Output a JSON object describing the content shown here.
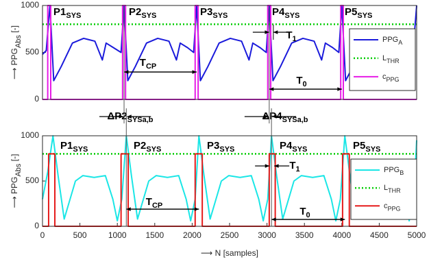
{
  "chart_data": [
    {
      "type": "line",
      "ylabel": {
        "main": "⟶ PPG",
        "sub": "Abs",
        "after": " [-]"
      },
      "xlim": [
        0,
        5000
      ],
      "ylim": [
        0,
        1000
      ],
      "yticks": [
        0,
        500,
        1000
      ],
      "grid": false,
      "series": [
        {
          "name": "PPG",
          "name_sub": "A",
          "color": "#1a1adb",
          "style": "solid",
          "x": [
            0,
            50,
            100,
            150,
            250,
            400,
            550,
            700,
            800,
            850,
            950,
            1050,
            1090,
            1140,
            1240,
            1390,
            1540,
            1690,
            1790,
            1840,
            1940,
            2020,
            2060,
            2110,
            2210,
            2360,
            2510,
            2660,
            2760,
            2810,
            2910,
            2990,
            3030,
            3080,
            3180,
            3330,
            3480,
            3630,
            3730,
            3780,
            3880,
            3960,
            4000,
            4050,
            4150,
            4300,
            4450,
            4600,
            4700,
            4750,
            4850,
            4950,
            5000
          ],
          "values": [
            480,
            520,
            1000,
            200,
            350,
            600,
            650,
            620,
            420,
            600,
            550,
            500,
            1000,
            200,
            350,
            600,
            650,
            620,
            420,
            600,
            550,
            500,
            1000,
            200,
            350,
            600,
            650,
            620,
            420,
            600,
            550,
            500,
            1000,
            200,
            350,
            600,
            650,
            620,
            420,
            600,
            550,
            500,
            1000,
            200,
            350,
            600,
            650,
            620,
            420,
            600,
            550,
            500,
            1000
          ]
        },
        {
          "name": "L",
          "name_sub": "THR",
          "color": "#00cc00",
          "style": "dotted",
          "x": [
            0,
            5000
          ],
          "values": [
            800,
            800
          ]
        },
        {
          "name": "c",
          "name_sub": "PPG",
          "color": "#e61ae6",
          "style": "solid",
          "x": [
            0,
            70,
            70,
            110,
            110,
            1070,
            1070,
            1110,
            1110,
            2040,
            2040,
            2080,
            2080,
            3010,
            3010,
            3050,
            3050,
            3985,
            3985,
            4020,
            4020,
            5000
          ],
          "values": [
            0,
            0,
            1000,
            1000,
            0,
            0,
            1000,
            1000,
            0,
            0,
            1000,
            1000,
            0,
            0,
            1000,
            1000,
            0,
            0,
            1000,
            1000,
            0,
            0
          ]
        }
      ],
      "annotations": [
        {
          "text": "P1",
          "sub": "SYS"
        },
        {
          "text": "P2",
          "sub": "SYS"
        },
        {
          "text": "P3",
          "sub": "SYS"
        },
        {
          "text": "P4",
          "sub": "SYS"
        },
        {
          "text": "P5",
          "sub": "SYS"
        },
        {
          "text": "T",
          "sub": "1"
        },
        {
          "text": "T",
          "sub": "CP"
        },
        {
          "text": "T",
          "sub": "0"
        },
        {
          "text": "ΔP2",
          "sub": "SYSa,b"
        },
        {
          "text": "ΔP4",
          "sub": "SYSa,b"
        }
      ]
    },
    {
      "type": "line",
      "ylabel": {
        "main": "⟶ PPG",
        "sub": "Abs",
        "after": " [-]"
      },
      "xlabel": "⟶ N [samples]",
      "xlim": [
        0,
        5000
      ],
      "xticks": [
        0,
        500,
        1000,
        1500,
        2000,
        2500,
        3000,
        3500,
        4000,
        4500,
        5000
      ],
      "ylim": [
        0,
        1000
      ],
      "yticks": [
        0,
        500,
        1000
      ],
      "grid": false,
      "series": [
        {
          "name": "PPG",
          "name_sub": "B",
          "color": "#1ae6e6",
          "style": "solid",
          "x": [
            0,
            70,
            140,
            210,
            290,
            440,
            540,
            690,
            840,
            940,
            1000,
            1060,
            1120,
            1190,
            1270,
            1420,
            1520,
            1670,
            1820,
            1920,
            1980,
            2040,
            2090,
            2160,
            2240,
            2390,
            2490,
            2640,
            2790,
            2890,
            2950,
            3010,
            3060,
            3130,
            3210,
            3360,
            3460,
            3610,
            3760,
            3860,
            3920,
            3980,
            4040,
            4110,
            4190,
            4340,
            4440,
            4590,
            4740,
            4840,
            4900,
            4960,
            5000
          ],
          "values": [
            300,
            600,
            1000,
            550,
            80,
            500,
            560,
            540,
            560,
            300,
            60,
            300,
            1000,
            550,
            80,
            500,
            560,
            540,
            560,
            300,
            60,
            300,
            1000,
            550,
            80,
            500,
            560,
            540,
            560,
            300,
            60,
            300,
            1000,
            550,
            80,
            500,
            560,
            540,
            560,
            300,
            60,
            300,
            1000,
            550,
            80,
            500,
            560,
            540,
            560,
            300,
            60,
            300,
            950
          ]
        },
        {
          "name": "L",
          "name_sub": "THR",
          "color": "#00cc00",
          "style": "dotted",
          "x": [
            0,
            5000
          ],
          "values": [
            800,
            800
          ]
        },
        {
          "name": "c",
          "name_sub": "PPG",
          "color": "#e61a1a",
          "style": "solid",
          "x": [
            0,
            82,
            82,
            165,
            165,
            1050,
            1050,
            1145,
            1145,
            2040,
            2040,
            2135,
            2135,
            3030,
            3030,
            3110,
            3110,
            4010,
            4010,
            4100,
            4100,
            5000
          ],
          "values": [
            0,
            0,
            800,
            800,
            0,
            0,
            800,
            800,
            0,
            0,
            800,
            800,
            0,
            0,
            800,
            800,
            0,
            0,
            800,
            800,
            0,
            0
          ]
        }
      ],
      "annotations": [
        {
          "text": "P1",
          "sub": "SYS"
        },
        {
          "text": "P2",
          "sub": "SYS"
        },
        {
          "text": "P3",
          "sub": "SYS"
        },
        {
          "text": "P4",
          "sub": "SYS"
        },
        {
          "text": "P5",
          "sub": "SYS"
        },
        {
          "text": "T",
          "sub": "1"
        },
        {
          "text": "T",
          "sub": "CP"
        },
        {
          "text": "T",
          "sub": "0"
        }
      ]
    }
  ]
}
